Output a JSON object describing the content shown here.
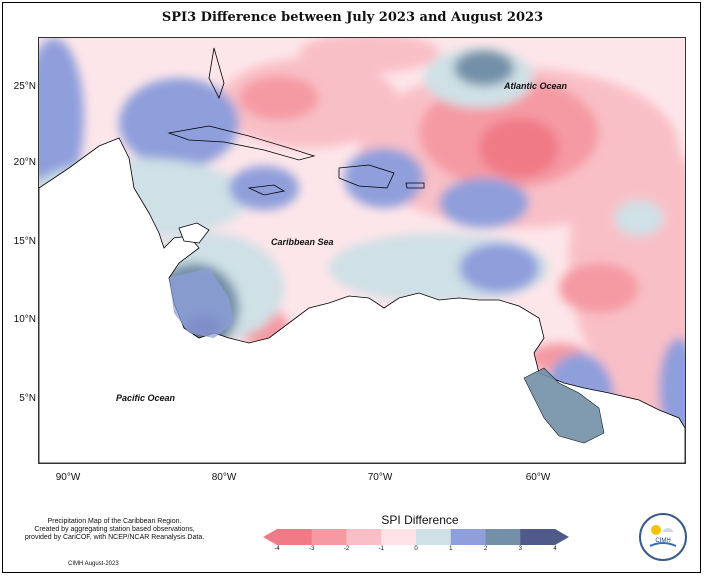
{
  "title": "SPI3 Difference between July 2023 and August 2023",
  "lat_labels": [
    "25°N",
    "20°N",
    "15°N",
    "10°N",
    "5°N"
  ],
  "lon_labels": [
    "90°W",
    "80°W",
    "70°W",
    "60°W"
  ],
  "oceans": {
    "atlantic": "Atlantic Ocean",
    "caribbean": "Caribbean Sea",
    "pacific": "Pacific Ocean"
  },
  "credit": {
    "line1": "Precipitation Map of the Caribbean Region.",
    "line2": "Created by aggregating station based observations,",
    "line3": "provided by CariCOF, with NCEP/NCAR Reanalysis Data.",
    "source": "CIMH August-2023"
  },
  "legend": {
    "title": "SPI Difference",
    "ticks": [
      "-4",
      "-3",
      "-2",
      "-1",
      "0",
      "1",
      "2",
      "3",
      "4"
    ],
    "colors": [
      "#f07a86",
      "#f59aa3",
      "#f9bfc6",
      "#fde3e7",
      "#cfe0e6",
      "#8f9fdc",
      "#7390a8",
      "#4f5a8a"
    ]
  },
  "logo": {
    "text": "CIMH"
  },
  "colors": {
    "strong_dry": "#f07a86",
    "dry": "#f59aa3",
    "slight_dry": "#f9bfc6",
    "near_normal": "#fde6ea",
    "slight_wet": "#cfe0e6",
    "wet": "#8f9fdc",
    "very_wet": "#7390a8",
    "extreme_wet": "#4f5a8a"
  }
}
